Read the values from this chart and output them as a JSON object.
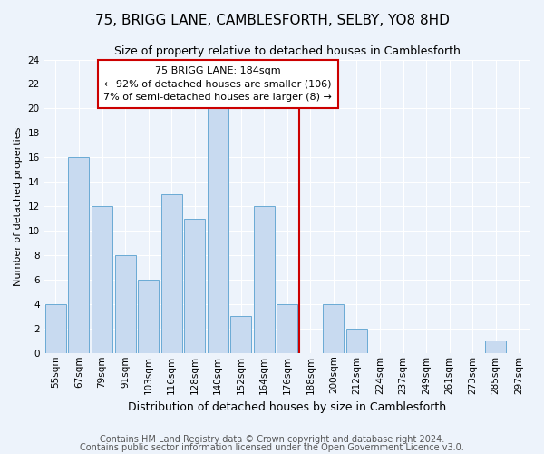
{
  "title": "75, BRIGG LANE, CAMBLESFORTH, SELBY, YO8 8HD",
  "subtitle": "Size of property relative to detached houses in Camblesforth",
  "xlabel": "Distribution of detached houses by size in Camblesforth",
  "ylabel": "Number of detached properties",
  "footnote1": "Contains HM Land Registry data © Crown copyright and database right 2024.",
  "footnote2": "Contains public sector information licensed under the Open Government Licence v3.0.",
  "categories": [
    "55sqm",
    "67sqm",
    "79sqm",
    "91sqm",
    "103sqm",
    "116sqm",
    "128sqm",
    "140sqm",
    "152sqm",
    "164sqm",
    "176sqm",
    "188sqm",
    "200sqm",
    "212sqm",
    "224sqm",
    "237sqm",
    "249sqm",
    "261sqm",
    "273sqm",
    "285sqm",
    "297sqm"
  ],
  "values": [
    4,
    16,
    12,
    8,
    6,
    13,
    11,
    20,
    3,
    12,
    4,
    0,
    4,
    2,
    0,
    0,
    0,
    0,
    0,
    1,
    0
  ],
  "bar_color": "#c8daf0",
  "bar_edge_color": "#6aaad4",
  "background_color": "#edf3fb",
  "grid_color": "#ffffff",
  "vline_index": 11,
  "annotation_text_line1": "75 BRIGG LANE: 184sqm",
  "annotation_text_line2": "← 92% of detached houses are smaller (106)",
  "annotation_text_line3": "7% of semi-detached houses are larger (8) →",
  "annotation_box_color": "#ffffff",
  "annotation_box_edge_color": "#cc0000",
  "vline_color": "#cc0000",
  "ylim": [
    0,
    24
  ],
  "yticks": [
    0,
    2,
    4,
    6,
    8,
    10,
    12,
    14,
    16,
    18,
    20,
    22,
    24
  ],
  "title_fontsize": 11,
  "subtitle_fontsize": 9,
  "xlabel_fontsize": 9,
  "ylabel_fontsize": 8,
  "tick_fontsize": 7.5,
  "annotation_fontsize": 8,
  "footnote_fontsize": 7,
  "bar_width": 0.9
}
